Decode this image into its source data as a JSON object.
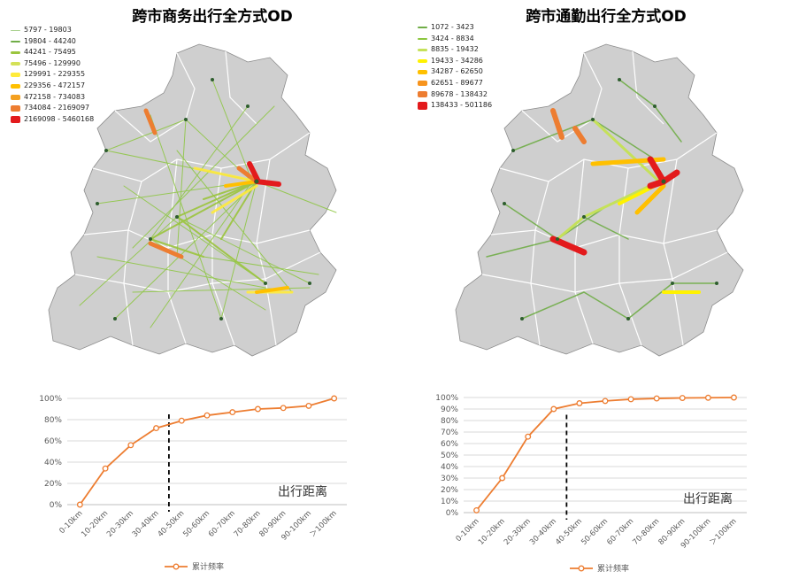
{
  "colors": {
    "line": "#ED7D31",
    "grid": "#D9D9D9",
    "axis": "#BFBFBF",
    "dashed": "#000000",
    "land": "#CFCFCF",
    "land_stroke": "#8C8C8C",
    "node": "#2E5E2E"
  },
  "left": {
    "title": "跨市商务出行全方式OD",
    "legend": [
      {
        "label": "5797 - 19803",
        "color": "#A9D18E",
        "weight": 1
      },
      {
        "label": "19804 - 44240",
        "color": "#70AD47",
        "weight": 2
      },
      {
        "label": "44241 - 75495",
        "color": "#9BC53D",
        "weight": 3
      },
      {
        "label": "75496 - 129990",
        "color": "#D4E157",
        "weight": 4
      },
      {
        "label": "129991 - 229355",
        "color": "#FFEB3B",
        "weight": 5
      },
      {
        "label": "229356 - 472157",
        "color": "#FFC000",
        "weight": 6
      },
      {
        "label": "472158 - 734083",
        "color": "#F4A020",
        "weight": 7
      },
      {
        "label": "734084 - 2169097",
        "color": "#ED7D31",
        "weight": 8
      },
      {
        "label": "2169098 - 5460168",
        "color": "#E31A1C",
        "weight": 9
      }
    ]
  },
  "right": {
    "title": "跨市通勤出行全方式OD",
    "legend": [
      {
        "label": "1072 - 3423",
        "color": "#70AD47",
        "weight": 2
      },
      {
        "label": "3424 - 8834",
        "color": "#8CC63F",
        "weight": 3
      },
      {
        "label": "8835 - 19432",
        "color": "#C5E15A",
        "weight": 4
      },
      {
        "label": "19433 - 34286",
        "color": "#FFF200",
        "weight": 5
      },
      {
        "label": "34287 - 62650",
        "color": "#FFC000",
        "weight": 6
      },
      {
        "label": "62651 - 89677",
        "color": "#F7941D",
        "weight": 7
      },
      {
        "label": "89678 - 138432",
        "color": "#ED7D31",
        "weight": 8
      },
      {
        "label": "138433 - 501186",
        "color": "#E31A1C",
        "weight": 9
      }
    ]
  },
  "chart_data": [
    {
      "type": "line",
      "categories": [
        "0-10km",
        "10-20km",
        "20-30km",
        "30-40km",
        "40-50km",
        "50-60km",
        "60-70km",
        "70-80km",
        "80-90km",
        "90-100km",
        "＞100km"
      ],
      "series": [
        {
          "name": "累计频率",
          "values": [
            0,
            34,
            56,
            72,
            79,
            84,
            87,
            90,
            91,
            93,
            100
          ]
        }
      ],
      "ylim": [
        0,
        100
      ],
      "yticks": [
        "0%",
        "20%",
        "40%",
        "60%",
        "80%",
        "100%"
      ],
      "annotation": "出行距离",
      "dashed_after_category": "30-40km",
      "grid": true,
      "legend_position": "bottom"
    },
    {
      "type": "line",
      "categories": [
        "0-10km",
        "10-20km",
        "20-30km",
        "30-40km",
        "40-50km",
        "50-60km",
        "60-70km",
        "70-80km",
        "80-90km",
        "90-100km",
        "＞100km"
      ],
      "series": [
        {
          "name": "累计频率",
          "values": [
            2,
            30,
            66,
            90,
            95,
            97,
            98.5,
            99.2,
            99.6,
            99.8,
            100
          ]
        }
      ],
      "ylim": [
        0,
        100
      ],
      "yticks": [
        "0%",
        "10%",
        "20%",
        "30%",
        "40%",
        "50%",
        "60%",
        "70%",
        "80%",
        "90%",
        "100%"
      ],
      "annotation": "出行距离",
      "dashed_after_category": "30-40km",
      "grid": true,
      "legend_position": "bottom"
    }
  ]
}
